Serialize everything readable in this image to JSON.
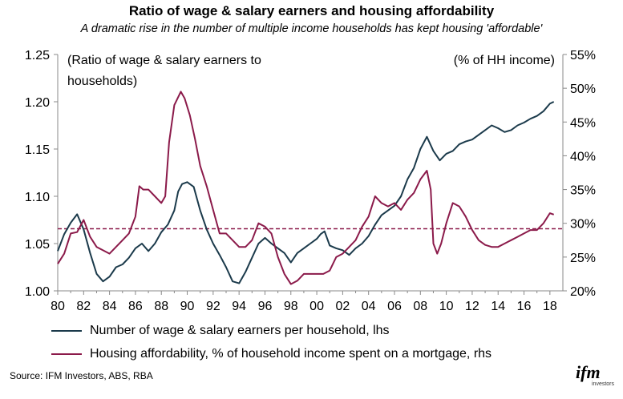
{
  "header": {
    "title": "Ratio of wage & salary earners and housing affordability",
    "subtitle": "A dramatic rise in the number of multiple income households has kept housing 'affordable'"
  },
  "chart_data": {
    "type": "line",
    "left_axis_note": [
      "(Ratio of wage & salary earners to",
      "households)"
    ],
    "right_axis_note": "(% of HH income)",
    "x_ticks": [
      "80",
      "82",
      "84",
      "86",
      "88",
      "90",
      "92",
      "94",
      "96",
      "98",
      "00",
      "02",
      "04",
      "06",
      "08",
      "10",
      "12",
      "14",
      "16",
      "18"
    ],
    "x_range": [
      1980,
      2019
    ],
    "y_left": {
      "range": [
        1.0,
        1.25
      ],
      "ticks": [
        "1.00",
        "1.05",
        "1.10",
        "1.15",
        "1.20",
        "1.25"
      ]
    },
    "y_right": {
      "range": [
        20,
        55
      ],
      "ticks": [
        "20%",
        "25%",
        "30%",
        "35%",
        "40%",
        "45%",
        "50%",
        "55%"
      ]
    },
    "reference_line": {
      "axis": "right",
      "value": 29.2,
      "style": "dashed",
      "color": "#8B1A4A"
    },
    "series": [
      {
        "name": "Number of wage & salary earners per household, lhs",
        "axis": "left",
        "color": "#1B3A4B",
        "x": [
          1980.0,
          1980.5,
          1981.0,
          1981.5,
          1982.0,
          1982.5,
          1983.0,
          1983.5,
          1984.0,
          1984.5,
          1985.0,
          1985.5,
          1986.0,
          1986.5,
          1987.0,
          1987.5,
          1988.0,
          1988.5,
          1989.0,
          1989.3,
          1989.6,
          1990.0,
          1990.5,
          1991.0,
          1991.5,
          1992.0,
          1992.5,
          1993.0,
          1993.5,
          1994.0,
          1994.5,
          1995.0,
          1995.5,
          1996.0,
          1996.5,
          1997.0,
          1997.5,
          1998.0,
          1998.5,
          1999.0,
          1999.5,
          2000.0,
          2000.3,
          2000.6,
          2001.0,
          2001.5,
          2002.0,
          2002.5,
          2003.0,
          2003.5,
          2004.0,
          2004.5,
          2005.0,
          2005.5,
          2006.0,
          2006.5,
          2007.0,
          2007.5,
          2008.0,
          2008.5,
          2009.0,
          2009.5,
          2010.0,
          2010.5,
          2011.0,
          2011.5,
          2012.0,
          2012.5,
          2013.0,
          2013.5,
          2014.0,
          2014.5,
          2015.0,
          2015.5,
          2016.0,
          2016.5,
          2017.0,
          2017.5,
          2018.0,
          2018.3
        ],
        "values": [
          1.042,
          1.06,
          1.072,
          1.081,
          1.065,
          1.04,
          1.018,
          1.01,
          1.015,
          1.025,
          1.028,
          1.035,
          1.045,
          1.05,
          1.042,
          1.05,
          1.062,
          1.07,
          1.085,
          1.105,
          1.113,
          1.115,
          1.11,
          1.085,
          1.065,
          1.05,
          1.038,
          1.025,
          1.01,
          1.008,
          1.02,
          1.035,
          1.05,
          1.056,
          1.05,
          1.045,
          1.04,
          1.03,
          1.04,
          1.045,
          1.05,
          1.055,
          1.06,
          1.063,
          1.048,
          1.045,
          1.043,
          1.038,
          1.045,
          1.05,
          1.058,
          1.07,
          1.08,
          1.085,
          1.09,
          1.1,
          1.118,
          1.13,
          1.15,
          1.163,
          1.148,
          1.138,
          1.145,
          1.148,
          1.155,
          1.158,
          1.16,
          1.165,
          1.17,
          1.175,
          1.172,
          1.168,
          1.17,
          1.175,
          1.178,
          1.182,
          1.185,
          1.19,
          1.198,
          1.2
        ]
      },
      {
        "name": "Housing affordability, % of household income spent on a mortgage, rhs",
        "axis": "right",
        "color": "#8B1A4A",
        "x": [
          1980.0,
          1980.5,
          1981.0,
          1981.5,
          1982.0,
          1982.5,
          1983.0,
          1983.5,
          1984.0,
          1984.5,
          1985.0,
          1985.5,
          1986.0,
          1986.3,
          1986.6,
          1987.0,
          1987.5,
          1988.0,
          1988.3,
          1988.6,
          1989.0,
          1989.5,
          1989.8,
          1990.2,
          1990.6,
          1991.0,
          1991.5,
          1992.0,
          1992.5,
          1993.0,
          1993.5,
          1994.0,
          1994.5,
          1995.0,
          1995.5,
          1996.0,
          1996.5,
          1997.0,
          1997.5,
          1998.0,
          1998.5,
          1999.0,
          1999.5,
          2000.0,
          2000.5,
          2001.0,
          2001.5,
          2002.0,
          2002.5,
          2003.0,
          2003.5,
          2004.0,
          2004.5,
          2005.0,
          2005.5,
          2006.0,
          2006.5,
          2007.0,
          2007.5,
          2008.0,
          2008.5,
          2008.8,
          2009.0,
          2009.3,
          2009.6,
          2010.0,
          2010.5,
          2011.0,
          2011.5,
          2012.0,
          2012.5,
          2013.0,
          2013.5,
          2014.0,
          2014.5,
          2015.0,
          2015.5,
          2016.0,
          2016.5,
          2017.0,
          2017.5,
          2018.0,
          2018.3
        ],
        "values": [
          24.0,
          25.5,
          28.5,
          28.7,
          30.5,
          28.0,
          26.5,
          26.0,
          25.5,
          26.5,
          27.5,
          28.5,
          31.0,
          35.5,
          35.0,
          35.0,
          34.0,
          33.0,
          34.0,
          42.0,
          47.5,
          49.5,
          48.5,
          46.0,
          42.5,
          38.5,
          35.5,
          32.0,
          28.5,
          28.5,
          27.5,
          26.5,
          26.5,
          27.5,
          30.0,
          29.5,
          28.5,
          25.0,
          22.5,
          21.0,
          21.5,
          22.5,
          22.5,
          22.5,
          22.5,
          23.0,
          25.0,
          25.5,
          26.5,
          27.5,
          29.5,
          31.0,
          34.0,
          33.0,
          32.5,
          33.0,
          32.0,
          33.5,
          34.5,
          36.5,
          37.8,
          35.0,
          27.0,
          25.5,
          27.0,
          30.0,
          33.0,
          32.5,
          31.0,
          29.0,
          27.5,
          26.8,
          26.5,
          26.5,
          27.0,
          27.5,
          28.0,
          28.5,
          29.0,
          29.0,
          30.0,
          31.5,
          31.3
        ]
      }
    ],
    "legend": [
      "Number of wage & salary earners per household, lhs",
      "Housing affordability, % of household income spent on a mortgage, rhs"
    ]
  },
  "footer": {
    "source": "Source: IFM Investors, ABS, RBA",
    "logo_text": "ifm",
    "logo_sub": "investors"
  }
}
